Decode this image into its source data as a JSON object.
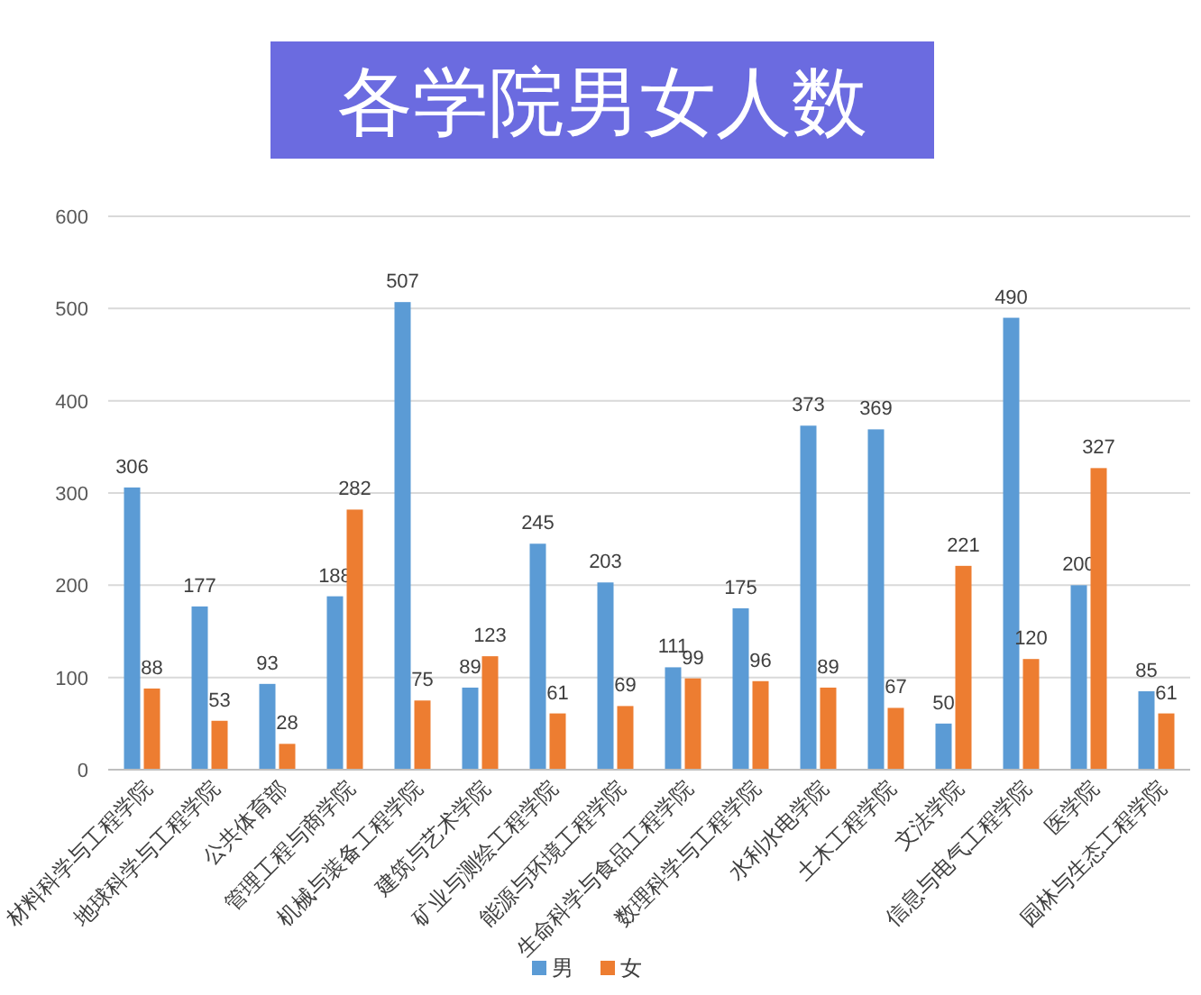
{
  "chart_data": {
    "type": "bar",
    "title": "各学院男女人数",
    "categories": [
      "材料科学与工程学院",
      "地球科学与工程学院",
      "公共体育部",
      "管理工程与商学院",
      "机械与装备工程学院",
      "建筑与艺术学院",
      "矿业与测绘工程学院",
      "能源与环境工程学院",
      "生命科学与食品工程学院",
      "数理科学与工程学院",
      "水利水电学院",
      "土木工程学院",
      "文法学院",
      "信息与电气工程学院",
      "医学院",
      "园林与生态工程学院"
    ],
    "series": [
      {
        "name": "男",
        "color": "#5b9bd5",
        "values": [
          306,
          177,
          93,
          188,
          507,
          89,
          245,
          203,
          111,
          175,
          373,
          369,
          50,
          490,
          200,
          85
        ]
      },
      {
        "name": "女",
        "color": "#ed7d31",
        "values": [
          88,
          53,
          28,
          282,
          75,
          123,
          61,
          69,
          99,
          96,
          89,
          67,
          221,
          120,
          327,
          61
        ]
      }
    ],
    "ylim": [
      0,
      600
    ],
    "yticks": [
      0,
      100,
      200,
      300,
      400,
      500,
      600
    ],
    "grid": "y",
    "legend": "bottom",
    "data_labels": true
  }
}
